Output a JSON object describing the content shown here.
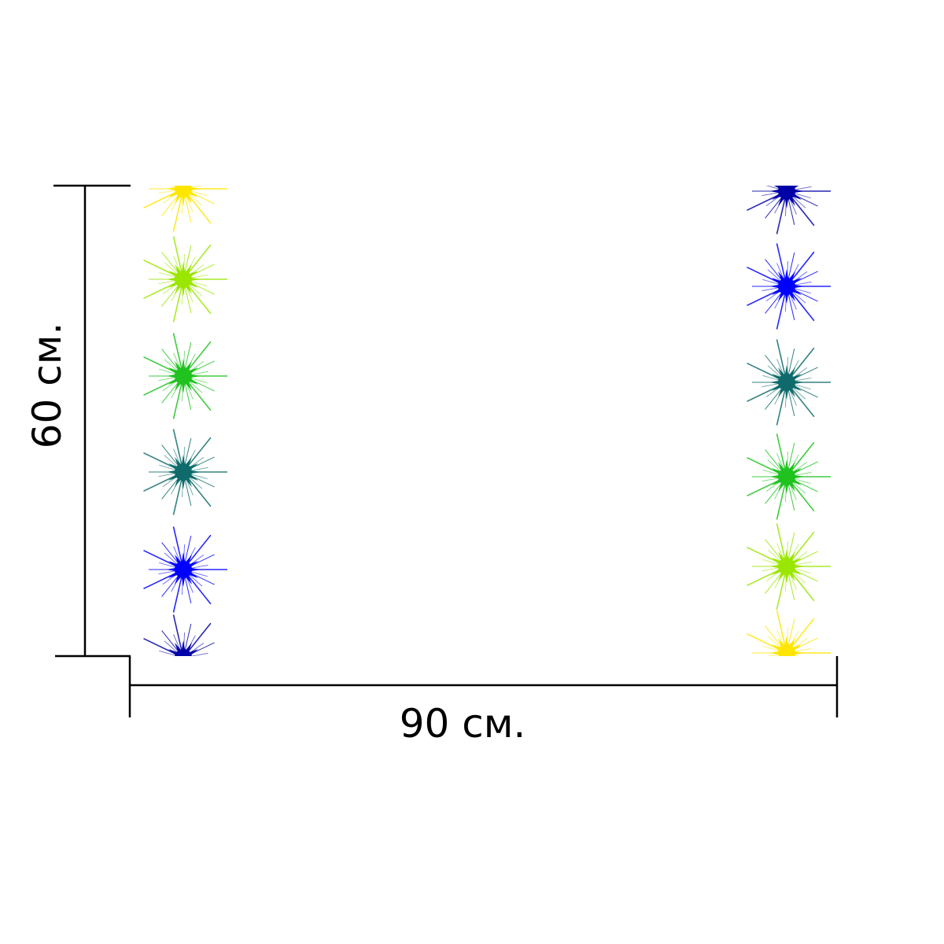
{
  "dimensions": {
    "height_label": "60 см.",
    "width_label": "90 см."
  },
  "pattern": {
    "left_column_colors": [
      "#ffe600",
      "#9ae600",
      "#1fc21f",
      "#0f6b6b",
      "#0000ff",
      "#0000a8"
    ],
    "right_column_colors": [
      "#0000a8",
      "#0000ff",
      "#0f6b6b",
      "#1fc21f",
      "#9ae600",
      "#ffe600"
    ],
    "line_color": "#000000"
  }
}
